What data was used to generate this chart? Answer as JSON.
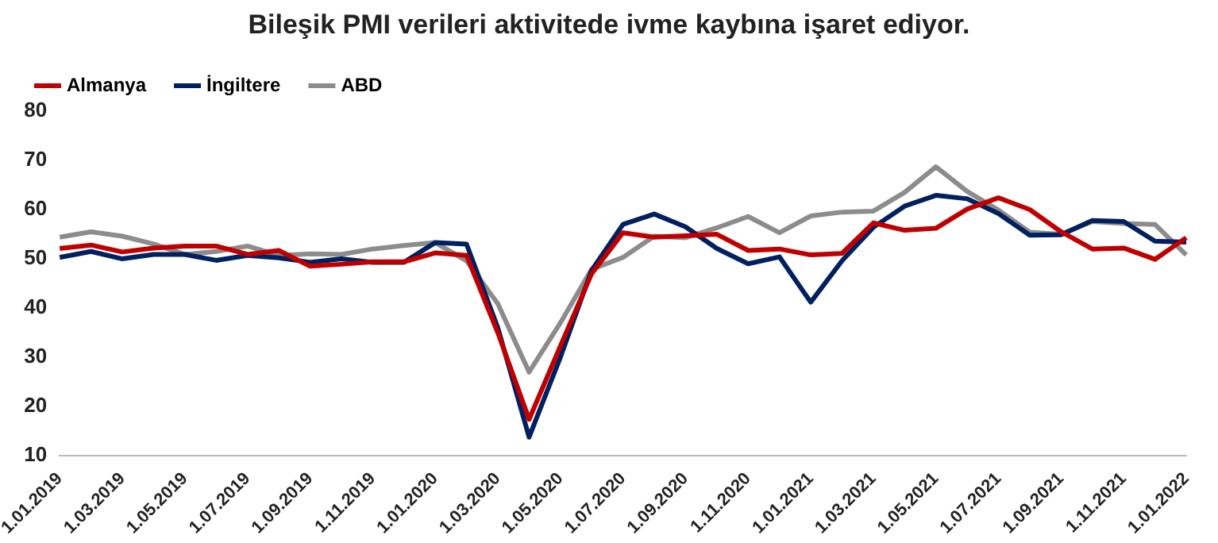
{
  "chart_data": {
    "type": "line",
    "title": "Bileşik PMI verileri aktivitede ivme kaybına işaret ediyor.",
    "categories": [
      "1.01.2019",
      null,
      "1.03.2019",
      null,
      "1.05.2019",
      null,
      "1.07.2019",
      null,
      "1.09.2019",
      null,
      "1.11.2019",
      null,
      "1.01.2020",
      null,
      "1.03.2020",
      null,
      "1.05.2020",
      null,
      "1.07.2020",
      null,
      "1.09.2020",
      null,
      "1.11.2020",
      null,
      "1.01.2021",
      null,
      "1.03.2021",
      null,
      "1.05.2021",
      null,
      "1.07.2021",
      null,
      "1.09.2021",
      null,
      "1.11.2021",
      null,
      "1.01.2022"
    ],
    "series": [
      {
        "name": "Almanya",
        "color": "#c00000",
        "values": [
          52.1,
          52.8,
          51.4,
          52.2,
          52.6,
          52.6,
          50.9,
          51.7,
          48.5,
          48.9,
          49.4,
          49.4,
          51.2,
          50.7,
          35.0,
          17.4,
          32.3,
          47.0,
          55.3,
          54.4,
          54.7,
          55.0,
          51.7,
          52.0,
          50.8,
          51.1,
          57.3,
          55.8,
          56.2,
          60.1,
          62.4,
          60.0,
          55.5,
          52.0,
          52.2,
          49.9,
          54.3
        ]
      },
      {
        "name": "İngiltere",
        "color": "#002060",
        "values": [
          50.3,
          51.5,
          50.0,
          50.9,
          50.9,
          49.7,
          50.7,
          50.2,
          49.3,
          50.0,
          49.3,
          49.3,
          53.3,
          53.0,
          36.0,
          13.8,
          30.0,
          47.7,
          57.0,
          59.1,
          56.5,
          52.1,
          49.0,
          50.4,
          41.2,
          49.6,
          56.4,
          60.7,
          62.9,
          62.2,
          59.2,
          54.8,
          54.9,
          57.8,
          57.6,
          53.6,
          53.4
        ]
      },
      {
        "name": "ABD",
        "color": "#8c8c8c",
        "values": [
          54.4,
          55.5,
          54.6,
          53.0,
          50.9,
          51.5,
          52.6,
          50.7,
          51.0,
          50.9,
          52.0,
          52.7,
          53.3,
          49.6,
          40.9,
          27.0,
          37.0,
          47.9,
          50.3,
          54.6,
          54.3,
          56.3,
          58.6,
          55.3,
          58.7,
          59.5,
          59.7,
          63.5,
          68.7,
          63.7,
          59.9,
          55.4,
          55.0,
          57.6,
          57.2,
          57.0,
          50.8
        ]
      }
    ],
    "ylim": [
      10,
      80
    ],
    "yticks": [
      10,
      20,
      30,
      40,
      50,
      60,
      70,
      80
    ],
    "grid": false,
    "legend": "top left",
    "marker": "none",
    "line_style": "solid"
  }
}
